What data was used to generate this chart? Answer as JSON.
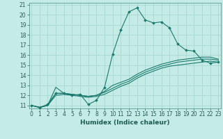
{
  "title": "",
  "xlabel": "Humidex (Indice chaleur)",
  "ylabel": "",
  "bg_color": "#c5ebe6",
  "grid_color": "#a8d8d2",
  "line_color": "#1a7a6e",
  "x": [
    0,
    1,
    2,
    3,
    4,
    5,
    6,
    7,
    8,
    9,
    10,
    11,
    12,
    13,
    14,
    15,
    16,
    17,
    18,
    19,
    20,
    21,
    22,
    23
  ],
  "y_main": [
    11.0,
    10.8,
    11.1,
    12.2,
    12.2,
    12.0,
    12.1,
    11.1,
    11.5,
    12.8,
    16.1,
    18.5,
    20.3,
    20.7,
    19.5,
    19.2,
    19.3,
    18.7,
    17.1,
    16.5,
    16.4,
    15.5,
    15.2,
    15.3
  ],
  "y_line1": [
    11.0,
    10.8,
    11.0,
    12.8,
    12.2,
    12.1,
    12.0,
    11.9,
    12.0,
    12.4,
    13.0,
    13.3,
    13.6,
    14.1,
    14.5,
    14.8,
    15.1,
    15.3,
    15.5,
    15.6,
    15.7,
    15.8,
    15.8,
    15.6
  ],
  "y_line2": [
    11.0,
    10.8,
    11.0,
    12.2,
    12.2,
    12.1,
    12.0,
    11.9,
    12.0,
    12.3,
    12.7,
    13.1,
    13.4,
    13.9,
    14.3,
    14.6,
    14.9,
    15.1,
    15.3,
    15.4,
    15.5,
    15.6,
    15.6,
    15.5
  ],
  "y_line3": [
    11.0,
    10.8,
    11.0,
    12.0,
    12.1,
    12.0,
    11.9,
    11.8,
    11.9,
    12.1,
    12.5,
    12.9,
    13.2,
    13.7,
    14.1,
    14.4,
    14.7,
    14.9,
    15.0,
    15.1,
    15.2,
    15.3,
    15.4,
    15.3
  ],
  "ylim": [
    11,
    21
  ],
  "xlim": [
    -0.3,
    23.3
  ],
  "yticks": [
    11,
    12,
    13,
    14,
    15,
    16,
    17,
    18,
    19,
    20,
    21
  ],
  "xticks": [
    0,
    1,
    2,
    3,
    4,
    5,
    6,
    7,
    8,
    9,
    10,
    11,
    12,
    13,
    14,
    15,
    16,
    17,
    18,
    19,
    20,
    21,
    22,
    23
  ],
  "tick_fontsize": 5.5,
  "xlabel_fontsize": 6.5
}
